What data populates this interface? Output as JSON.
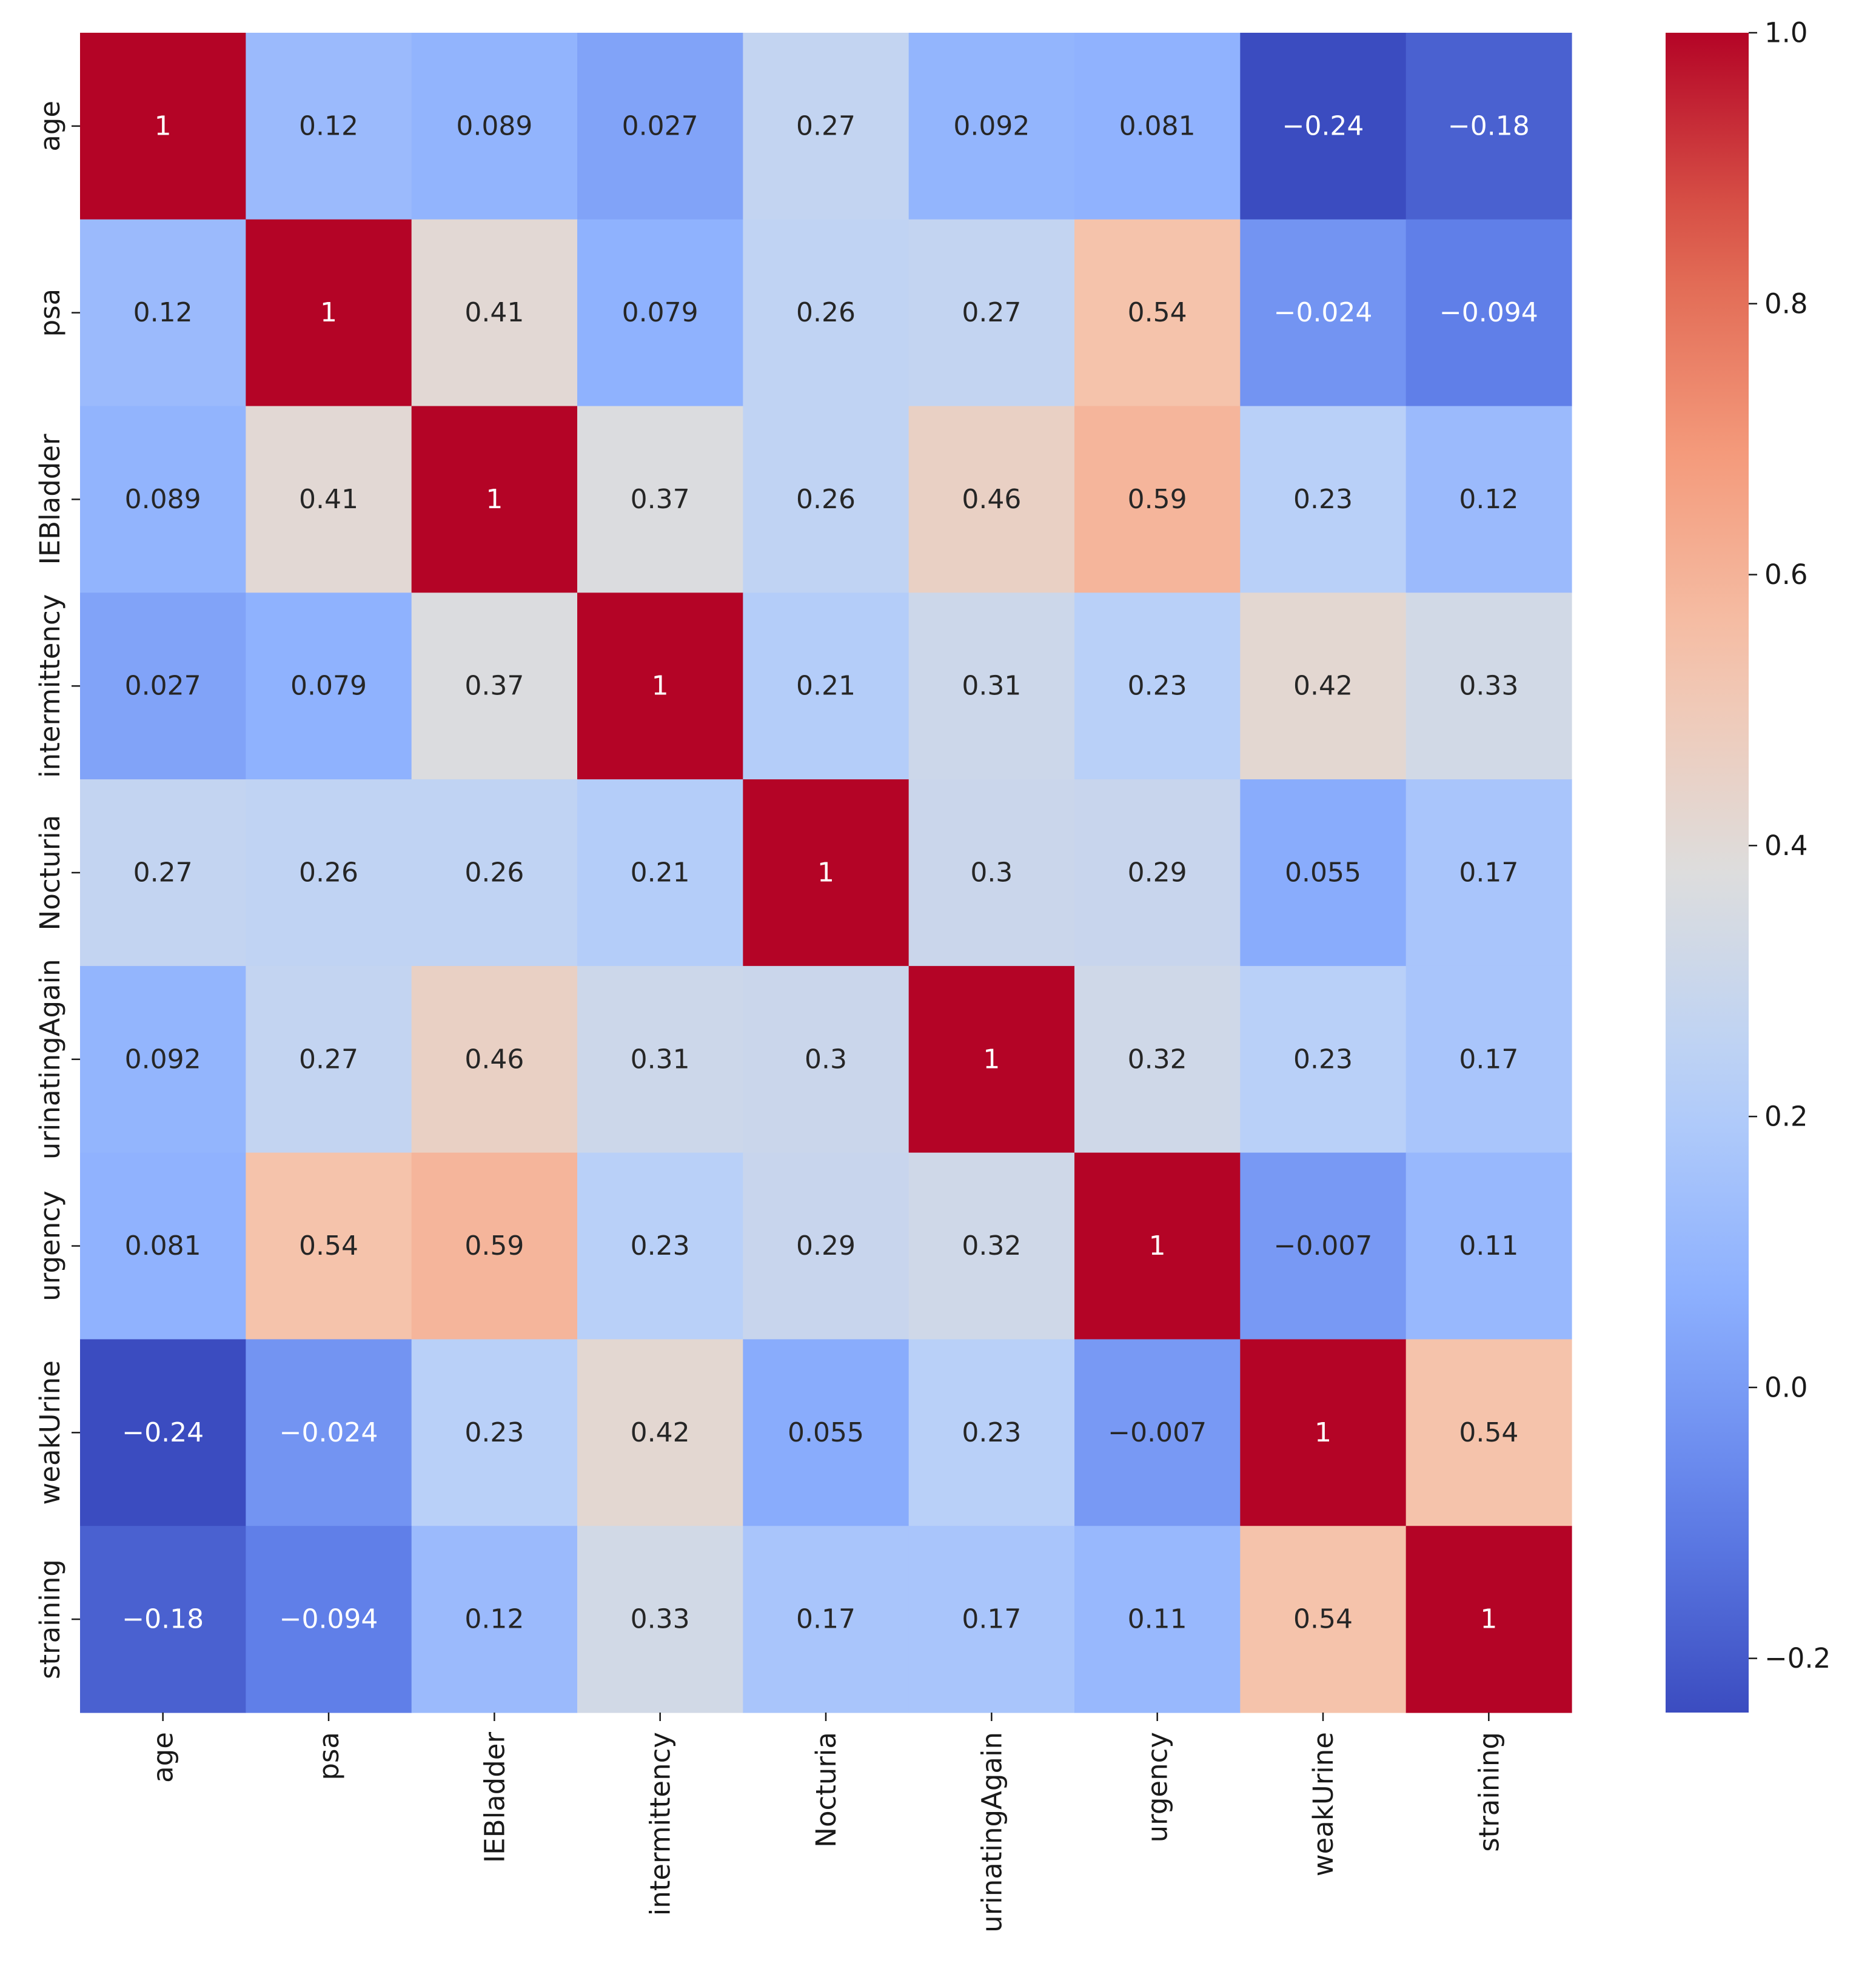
{
  "chart_data": {
    "type": "heatmap",
    "title": "",
    "xlabel": "",
    "ylabel": "",
    "colormap": "coolwarm",
    "vmin": -0.24,
    "vmax": 1.0,
    "row_labels": [
      "age",
      "psa",
      "IEBladder",
      "intermittency",
      "Nocturia",
      "urinatingAgain",
      "urgency",
      "weakUrine",
      "straining"
    ],
    "col_labels": [
      "age",
      "psa",
      "IEBladder",
      "intermittency",
      "Nocturia",
      "urinatingAgain",
      "urgency",
      "weakUrine",
      "straining"
    ],
    "values": [
      [
        1,
        0.12,
        0.089,
        0.027,
        0.27,
        0.092,
        0.081,
        -0.24,
        -0.18
      ],
      [
        0.12,
        1,
        0.41,
        0.079,
        0.26,
        0.27,
        0.54,
        -0.024,
        -0.094
      ],
      [
        0.089,
        0.41,
        1,
        0.37,
        0.26,
        0.46,
        0.59,
        0.23,
        0.12
      ],
      [
        0.027,
        0.079,
        0.37,
        1,
        0.21,
        0.31,
        0.23,
        0.42,
        0.33
      ],
      [
        0.27,
        0.26,
        0.26,
        0.21,
        1,
        0.3,
        0.29,
        0.055,
        0.17
      ],
      [
        0.092,
        0.27,
        0.46,
        0.31,
        0.3,
        1,
        0.32,
        0.23,
        0.17
      ],
      [
        0.081,
        0.54,
        0.59,
        0.23,
        0.29,
        0.32,
        1,
        -0.007,
        0.11
      ],
      [
        -0.24,
        -0.024,
        0.23,
        0.42,
        0.055,
        0.23,
        -0.007,
        1,
        0.54
      ],
      [
        -0.18,
        -0.094,
        0.12,
        0.33,
        0.17,
        0.17,
        0.11,
        0.54,
        1
      ]
    ],
    "annotations": [
      [
        "1",
        "0.12",
        "0.089",
        "0.027",
        "0.27",
        "0.092",
        "0.081",
        "−0.24",
        "−0.18"
      ],
      [
        "0.12",
        "1",
        "0.41",
        "0.079",
        "0.26",
        "0.27",
        "0.54",
        "−0.024",
        "−0.094"
      ],
      [
        "0.089",
        "0.41",
        "1",
        "0.37",
        "0.26",
        "0.46",
        "0.59",
        "0.23",
        "0.12"
      ],
      [
        "0.027",
        "0.079",
        "0.37",
        "1",
        "0.21",
        "0.31",
        "0.23",
        "0.42",
        "0.33"
      ],
      [
        "0.27",
        "0.26",
        "0.26",
        "0.21",
        "1",
        "0.3",
        "0.29",
        "0.055",
        "0.17"
      ],
      [
        "0.092",
        "0.27",
        "0.46",
        "0.31",
        "0.3",
        "1",
        "0.32",
        "0.23",
        "0.17"
      ],
      [
        "0.081",
        "0.54",
        "0.59",
        "0.23",
        "0.29",
        "0.32",
        "1",
        "−0.007",
        "0.11"
      ],
      [
        "−0.24",
        "−0.024",
        "0.23",
        "0.42",
        "0.055",
        "0.23",
        "−0.007",
        "1",
        "0.54"
      ],
      [
        "−0.18",
        "−0.094",
        "0.12",
        "0.33",
        "0.17",
        "0.17",
        "0.11",
        "0.54",
        "1"
      ]
    ],
    "colorbar": {
      "location": "right",
      "ticks": [
        -0.2,
        0.0,
        0.2,
        0.4,
        0.6,
        0.8,
        1.0
      ],
      "tick_labels": [
        "−0.2",
        "0.0",
        "0.2",
        "0.4",
        "0.6",
        "0.8",
        "1.0"
      ]
    },
    "grid": false
  }
}
